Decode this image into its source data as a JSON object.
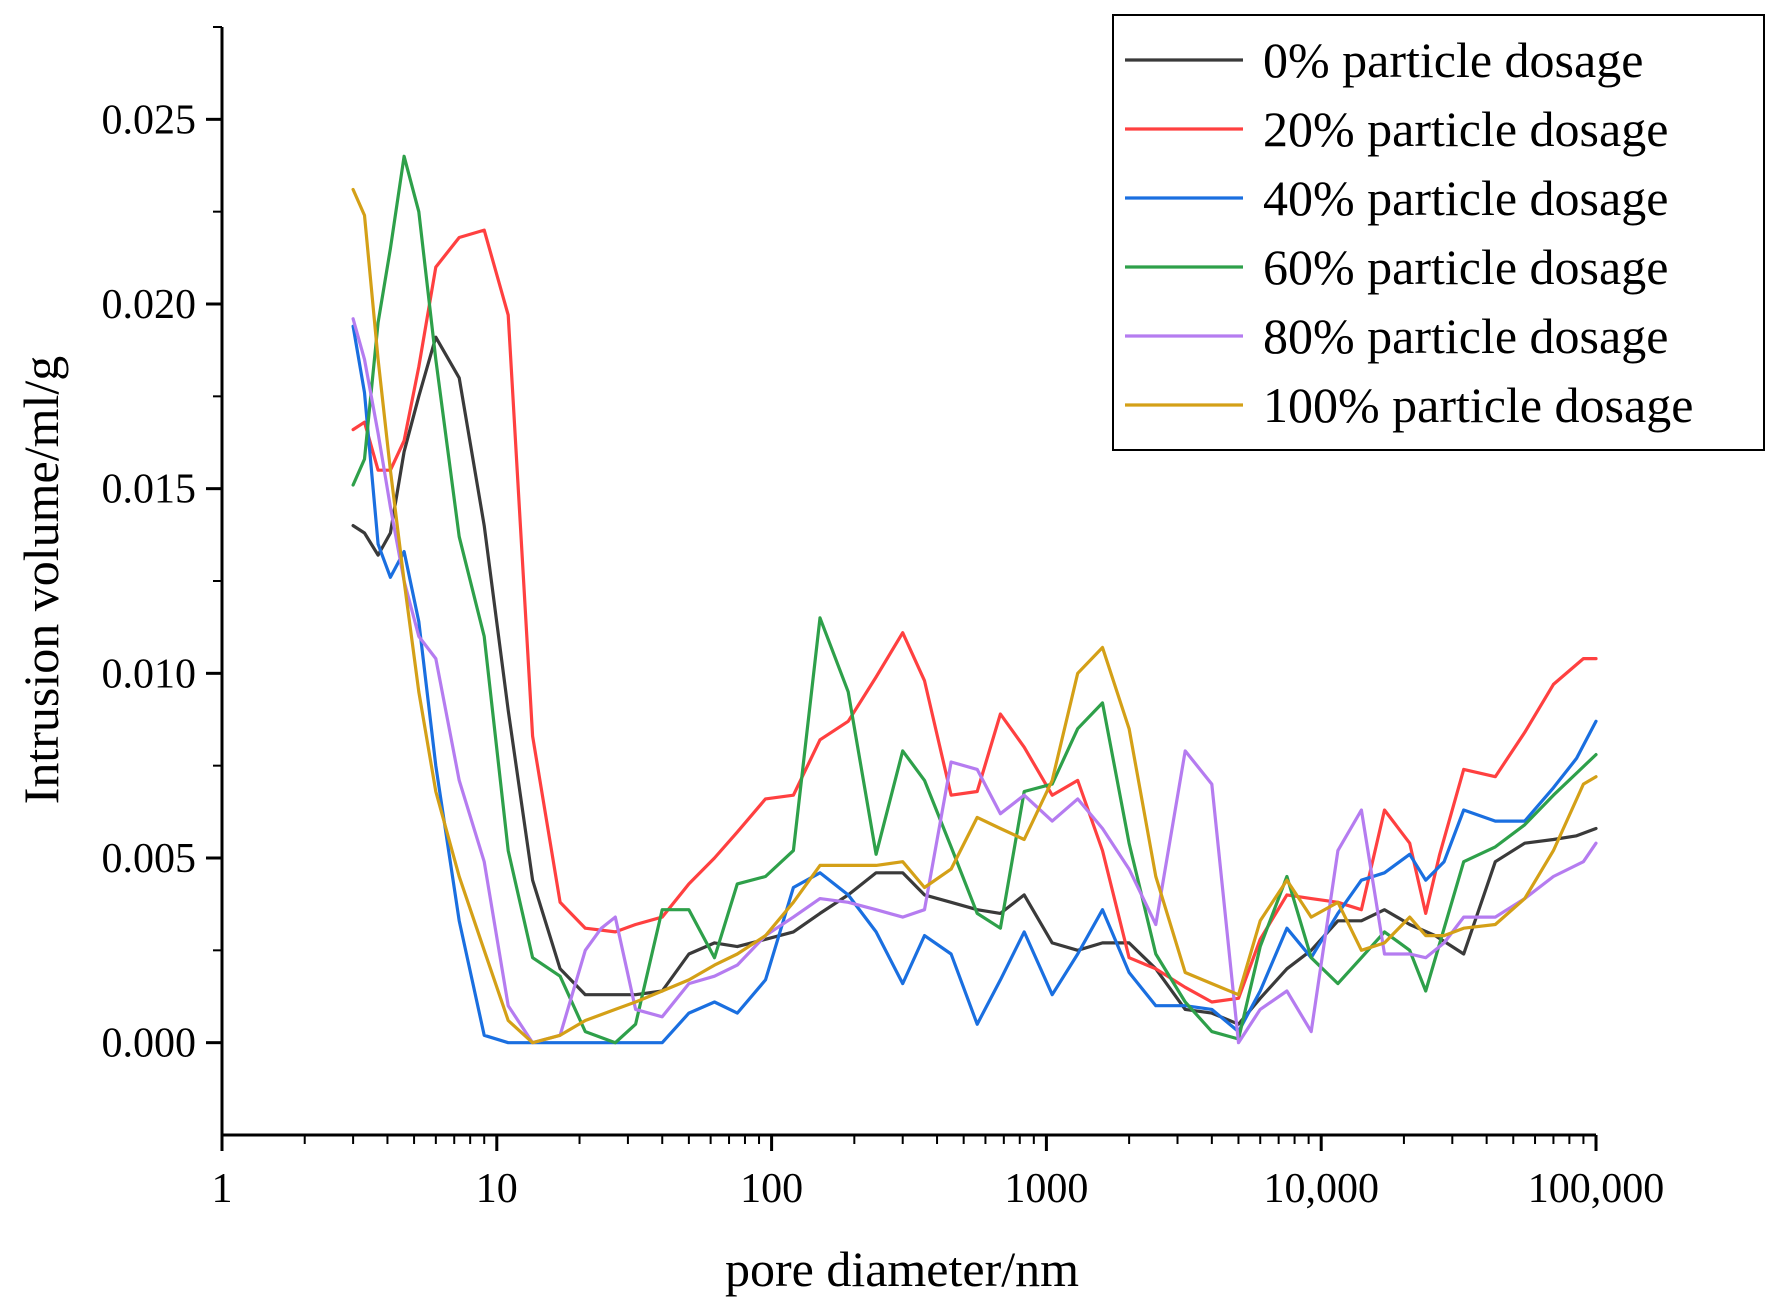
{
  "chart_data": {
    "type": "line",
    "xscale": "log",
    "xlabel": "pore diameter/nm",
    "ylabel": "Intrusion volume/ml/g",
    "xlim": [
      1,
      100000
    ],
    "ylim": [
      -0.0025,
      0.0275
    ],
    "grid": false,
    "legend_position": "top-right",
    "xticks": [
      {
        "value": 1,
        "label": "1"
      },
      {
        "value": 10,
        "label": "10"
      },
      {
        "value": 100,
        "label": "100"
      },
      {
        "value": 1000,
        "label": "1000"
      },
      {
        "value": 10000,
        "label": "10,000"
      },
      {
        "value": 100000,
        "label": "100,000"
      }
    ],
    "yticks": [
      {
        "value": 0.0,
        "label": "0.000"
      },
      {
        "value": 0.005,
        "label": "0.005"
      },
      {
        "value": 0.01,
        "label": "0.010"
      },
      {
        "value": 0.015,
        "label": "0.015"
      },
      {
        "value": 0.02,
        "label": "0.020"
      },
      {
        "value": 0.025,
        "label": "0.025"
      }
    ],
    "series": [
      {
        "name": "0% particle dosage",
        "color": "#3a3a3a",
        "x": [
          3,
          3.3,
          3.7,
          4.1,
          4.6,
          5.2,
          6,
          7.3,
          9,
          11,
          13.5,
          17,
          21,
          27,
          32,
          40,
          50,
          62,
          75,
          95,
          120,
          150,
          190,
          240,
          300,
          360,
          450,
          560,
          680,
          830,
          1050,
          1300,
          1600,
          2000,
          2500,
          3200,
          4000,
          5000,
          6000,
          7500,
          9200,
          11500,
          14000,
          17000,
          21000,
          26000,
          33000,
          43000,
          55000,
          70000,
          85000,
          100000
        ],
        "y": [
          0.014,
          0.0138,
          0.0132,
          0.0138,
          0.016,
          0.0175,
          0.0191,
          0.018,
          0.014,
          0.009,
          0.0044,
          0.002,
          0.0013,
          0.0013,
          0.0013,
          0.0014,
          0.0024,
          0.0027,
          0.0026,
          0.0028,
          0.003,
          0.0035,
          0.004,
          0.0046,
          0.0046,
          0.004,
          0.0038,
          0.0036,
          0.0035,
          0.004,
          0.0027,
          0.0025,
          0.0027,
          0.0027,
          0.002,
          0.0009,
          0.0008,
          0.0005,
          0.0012,
          0.002,
          0.0025,
          0.0033,
          0.0033,
          0.0036,
          0.0032,
          0.0029,
          0.0024,
          0.0049,
          0.0054,
          0.0055,
          0.0056,
          0.0058
        ]
      },
      {
        "name": "20% particle dosage",
        "color": "#ff4040",
        "x": [
          3,
          3.3,
          3.7,
          4.1,
          4.6,
          5.2,
          6,
          7.3,
          9,
          11,
          13.5,
          17,
          21,
          27,
          32,
          40,
          50,
          62,
          75,
          95,
          120,
          150,
          190,
          240,
          300,
          360,
          450,
          560,
          680,
          830,
          1050,
          1300,
          1600,
          2000,
          2500,
          3200,
          4000,
          5000,
          6000,
          7500,
          9200,
          11500,
          14000,
          17000,
          21000,
          24000,
          27000,
          33000,
          43000,
          55000,
          70000,
          90000,
          100000
        ],
        "y": [
          0.0166,
          0.0168,
          0.0155,
          0.0155,
          0.0163,
          0.0183,
          0.021,
          0.0218,
          0.022,
          0.0197,
          0.0083,
          0.0038,
          0.0031,
          0.003,
          0.0032,
          0.0034,
          0.0043,
          0.005,
          0.0057,
          0.0066,
          0.0067,
          0.0082,
          0.0087,
          0.0099,
          0.0111,
          0.0098,
          0.0067,
          0.0068,
          0.0089,
          0.008,
          0.0067,
          0.0071,
          0.0052,
          0.0023,
          0.002,
          0.0015,
          0.0011,
          0.0012,
          0.0028,
          0.004,
          0.0039,
          0.0038,
          0.0036,
          0.0063,
          0.0054,
          0.0035,
          0.0051,
          0.0074,
          0.0072,
          0.0084,
          0.0097,
          0.0104,
          0.0104
        ]
      },
      {
        "name": "40% particle dosage",
        "color": "#1a6fe0",
        "x": [
          3,
          3.3,
          3.7,
          4.1,
          4.6,
          5.2,
          6,
          7.3,
          9,
          11,
          13.5,
          17,
          21,
          27,
          32,
          40,
          50,
          62,
          75,
          95,
          120,
          150,
          190,
          240,
          300,
          360,
          450,
          560,
          680,
          830,
          1050,
          1300,
          1600,
          2000,
          2500,
          3200,
          4000,
          5000,
          6000,
          7500,
          9200,
          11500,
          14000,
          17000,
          21000,
          24000,
          28000,
          33000,
          43000,
          55000,
          70000,
          85000,
          100000
        ],
        "y": [
          0.0194,
          0.0176,
          0.0135,
          0.0126,
          0.0133,
          0.0114,
          0.0075,
          0.0033,
          0.0002,
          0.0,
          0.0,
          0.0,
          0.0,
          0.0,
          0.0,
          0.0,
          0.0008,
          0.0011,
          0.0008,
          0.0017,
          0.0042,
          0.0046,
          0.004,
          0.003,
          0.0016,
          0.0029,
          0.0024,
          0.0005,
          0.0017,
          0.003,
          0.0013,
          0.0024,
          0.0036,
          0.0019,
          0.001,
          0.001,
          0.0009,
          0.0003,
          0.0014,
          0.0031,
          0.0023,
          0.0035,
          0.0044,
          0.0046,
          0.0051,
          0.0044,
          0.0049,
          0.0063,
          0.006,
          0.006,
          0.0069,
          0.0077,
          0.0087
        ]
      },
      {
        "name": "60% particle dosage",
        "color": "#2ea04a",
        "x": [
          3,
          3.3,
          3.7,
          4.1,
          4.6,
          5.2,
          6,
          7.3,
          9,
          11,
          13.5,
          17,
          21,
          27,
          32,
          40,
          50,
          62,
          75,
          95,
          120,
          150,
          190,
          240,
          300,
          360,
          450,
          560,
          680,
          830,
          1050,
          1300,
          1600,
          2000,
          2500,
          3200,
          4000,
          5000,
          6000,
          7500,
          9200,
          11500,
          14000,
          17000,
          21000,
          24000,
          33000,
          43000,
          55000,
          70000,
          85000,
          100000
        ],
        "y": [
          0.0151,
          0.0158,
          0.0195,
          0.0215,
          0.024,
          0.0225,
          0.0185,
          0.0137,
          0.011,
          0.0052,
          0.0023,
          0.0018,
          0.0003,
          0.0,
          0.0005,
          0.0036,
          0.0036,
          0.0023,
          0.0043,
          0.0045,
          0.0052,
          0.0115,
          0.0095,
          0.0051,
          0.0079,
          0.0071,
          0.0053,
          0.0035,
          0.0031,
          0.0068,
          0.007,
          0.0085,
          0.0092,
          0.0054,
          0.0024,
          0.0011,
          0.0003,
          0.0001,
          0.0026,
          0.0045,
          0.0023,
          0.0016,
          0.0023,
          0.003,
          0.0025,
          0.0014,
          0.0049,
          0.0053,
          0.0059,
          0.0067,
          0.0073,
          0.0078
        ]
      },
      {
        "name": "80% particle dosage",
        "color": "#b57cf0",
        "x": [
          3,
          3.3,
          3.7,
          4.1,
          4.6,
          5.2,
          6,
          7.3,
          9,
          11,
          13.5,
          17,
          21,
          24,
          27,
          32,
          40,
          50,
          62,
          75,
          95,
          120,
          150,
          190,
          240,
          300,
          360,
          450,
          560,
          680,
          830,
          1050,
          1300,
          1600,
          2000,
          2500,
          3200,
          4000,
          5000,
          6000,
          7500,
          9200,
          11500,
          14000,
          17000,
          21000,
          24000,
          28000,
          33000,
          43000,
          55000,
          70000,
          90000,
          100000
        ],
        "y": [
          0.0196,
          0.0185,
          0.0165,
          0.0145,
          0.0125,
          0.011,
          0.0104,
          0.0071,
          0.0049,
          0.001,
          0.0,
          0.0002,
          0.0025,
          0.0031,
          0.0034,
          0.0009,
          0.0007,
          0.0016,
          0.0018,
          0.0021,
          0.0029,
          0.0034,
          0.0039,
          0.0038,
          0.0036,
          0.0034,
          0.0036,
          0.0076,
          0.0074,
          0.0062,
          0.0067,
          0.006,
          0.0066,
          0.0058,
          0.0047,
          0.0032,
          0.0079,
          0.007,
          0.0,
          0.0009,
          0.0014,
          0.0003,
          0.0052,
          0.0063,
          0.0024,
          0.0024,
          0.0023,
          0.0027,
          0.0034,
          0.0034,
          0.0039,
          0.0045,
          0.0049,
          0.0054
        ]
      },
      {
        "name": "100% particle dosage",
        "color": "#d4a017",
        "x": [
          3,
          3.3,
          3.7,
          4.1,
          4.6,
          5.2,
          6,
          7.3,
          9,
          11,
          13.5,
          17,
          21,
          27,
          32,
          40,
          50,
          62,
          75,
          95,
          120,
          150,
          190,
          240,
          300,
          360,
          450,
          560,
          680,
          830,
          1050,
          1300,
          1600,
          2000,
          2500,
          3200,
          4000,
          5000,
          6000,
          7500,
          9200,
          11500,
          14000,
          17000,
          21000,
          24000,
          28000,
          33000,
          43000,
          55000,
          70000,
          90000,
          100000
        ],
        "y": [
          0.0231,
          0.0224,
          0.0185,
          0.0155,
          0.0125,
          0.0095,
          0.0068,
          0.0045,
          0.0025,
          0.0006,
          0.0,
          0.0002,
          0.0006,
          0.0009,
          0.0011,
          0.0014,
          0.0017,
          0.0021,
          0.0024,
          0.0029,
          0.0038,
          0.0048,
          0.0048,
          0.0048,
          0.0049,
          0.0042,
          0.0047,
          0.0061,
          0.0058,
          0.0055,
          0.0071,
          0.01,
          0.0107,
          0.0085,
          0.0045,
          0.0019,
          0.0016,
          0.0013,
          0.0033,
          0.0044,
          0.0034,
          0.0038,
          0.0025,
          0.0027,
          0.0034,
          0.0029,
          0.0029,
          0.0031,
          0.0032,
          0.0039,
          0.0052,
          0.007,
          0.0072
        ]
      }
    ]
  }
}
